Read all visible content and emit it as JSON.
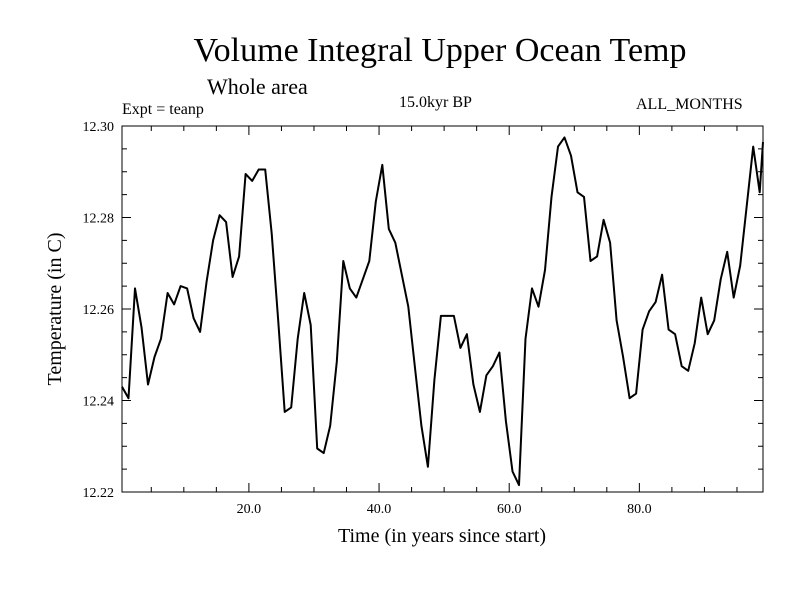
{
  "chart_data": {
    "type": "line",
    "title": "Volume Integral Upper Ocean Temp",
    "subtitle": "Whole area",
    "annotations": {
      "left": "Expt = teanp",
      "center": "15.0kyr BP",
      "right": "ALL_MONTHS"
    },
    "xlabel": "Time (in years since start)",
    "ylabel": "Temperature (in C)",
    "xlim": [
      0.5,
      99
    ],
    "ylim": [
      12.22,
      12.3
    ],
    "xticks": [
      20,
      40,
      60,
      80
    ],
    "xtick_labels": [
      "20.0",
      "40.0",
      "60.0",
      "80.0"
    ],
    "yticks": [
      12.22,
      12.24,
      12.26,
      12.28,
      12.3
    ],
    "ytick_labels": [
      "12.22",
      "12.24",
      "12.26",
      "12.28",
      "12.30"
    ],
    "grid": false,
    "series": [
      {
        "name": "teanp",
        "x": [
          0.5,
          1.5,
          2.5,
          3.5,
          4.5,
          5.5,
          6.5,
          7.5,
          8.5,
          9.5,
          10.5,
          11.5,
          12.5,
          13.5,
          14.5,
          15.5,
          16.5,
          17.5,
          18.5,
          19.5,
          20.5,
          21.5,
          22.5,
          23.5,
          24.5,
          25.5,
          26.5,
          27.5,
          28.5,
          29.5,
          30.5,
          31.5,
          32.5,
          33.5,
          34.5,
          35.5,
          36.5,
          37.5,
          38.5,
          39.5,
          40.5,
          41.5,
          42.5,
          43.5,
          44.5,
          45.5,
          46.5,
          47.5,
          48.5,
          49.5,
          50.5,
          51.5,
          52.5,
          53.5,
          54.5,
          55.5,
          56.5,
          57.5,
          58.5,
          59.5,
          60.5,
          61.5,
          62.5,
          63.5,
          64.5,
          65.5,
          66.5,
          67.5,
          68.5,
          69.5,
          70.5,
          71.5,
          72.5,
          73.5,
          74.5,
          75.5,
          76.5,
          77.5,
          78.5,
          79.5,
          80.5,
          81.5,
          82.5,
          83.5,
          84.5,
          85.5,
          86.5,
          87.5,
          88.5,
          89.5,
          90.5,
          91.5,
          92.5,
          93.5,
          94.5,
          95.5,
          96.5,
          97.5,
          98.5,
          99.0
        ],
        "values": [
          12.243,
          12.2405,
          12.2645,
          12.256,
          12.2435,
          12.2495,
          12.2535,
          12.2635,
          12.261,
          12.265,
          12.2645,
          12.258,
          12.255,
          12.266,
          12.275,
          12.2805,
          12.279,
          12.267,
          12.2715,
          12.2895,
          12.288,
          12.2905,
          12.2905,
          12.2765,
          12.2575,
          12.2375,
          12.2385,
          12.2535,
          12.2635,
          12.2565,
          12.2295,
          12.2285,
          12.2345,
          12.2485,
          12.2705,
          12.2645,
          12.2625,
          12.2665,
          12.2705,
          12.2835,
          12.2915,
          12.2775,
          12.2745,
          12.2675,
          12.2605,
          12.2475,
          12.2345,
          12.2255,
          12.2445,
          12.2585,
          12.2585,
          12.2585,
          12.2515,
          12.2545,
          12.2435,
          12.2375,
          12.2455,
          12.2475,
          12.2505,
          12.2355,
          12.2245,
          12.2215,
          12.2535,
          12.2645,
          12.2605,
          12.2685,
          12.2845,
          12.2955,
          12.2975,
          12.2935,
          12.2855,
          12.2845,
          12.2705,
          12.2715,
          12.2795,
          12.2745,
          12.2575,
          12.2495,
          12.2405,
          12.2415,
          12.2555,
          12.2595,
          12.2615,
          12.2675,
          12.2555,
          12.2545,
          12.2475,
          12.2465,
          12.2525,
          12.2625,
          12.2545,
          12.2575,
          12.2665,
          12.2725,
          12.2625,
          12.2695,
          12.2825,
          12.2955,
          12.2855,
          12.2965
        ]
      }
    ]
  }
}
